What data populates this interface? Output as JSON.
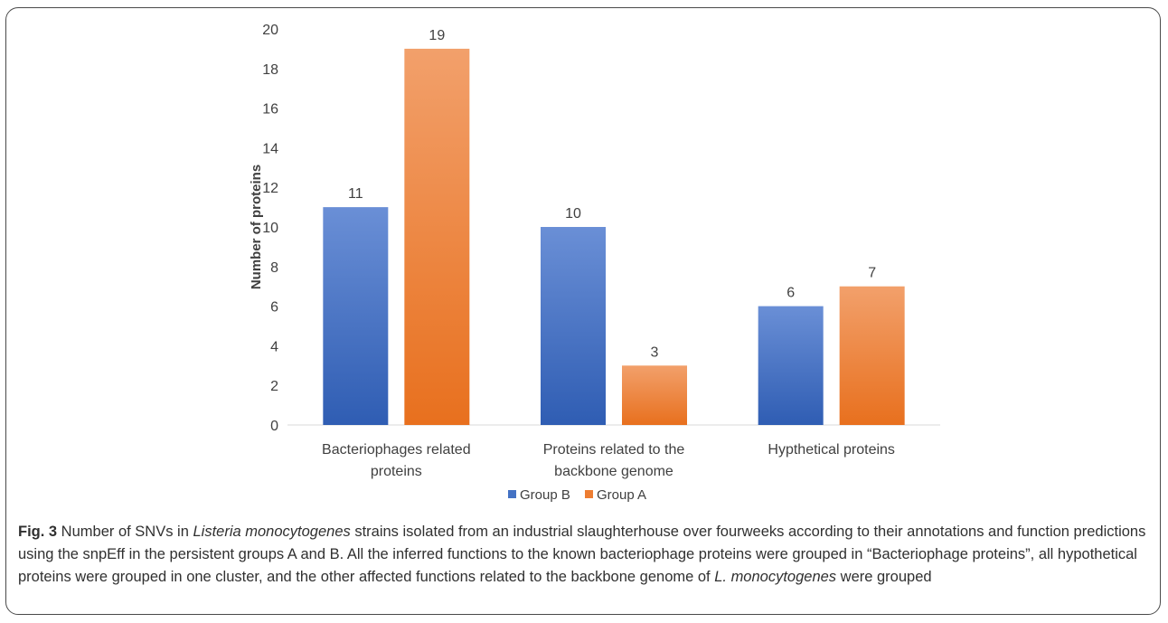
{
  "chart_data": {
    "type": "bar",
    "categories": [
      [
        "Bacteriophages related",
        "proteins"
      ],
      [
        "Proteins related to the",
        "backbone genome"
      ],
      [
        "Hypthetical proteins"
      ]
    ],
    "series": [
      {
        "name": "Group B",
        "values": [
          11,
          10,
          6
        ],
        "color": "#4472C4",
        "gradient": [
          "#6A8FD6",
          "#2F5DB3"
        ]
      },
      {
        "name": "Group A",
        "values": [
          19,
          3,
          7
        ],
        "color": "#ED7D31",
        "gradient": [
          "#F2A06B",
          "#E8701E"
        ]
      }
    ],
    "ylabel": "Number of proteins",
    "xlabel": "",
    "ylim": [
      0,
      20
    ],
    "yticks": [
      0,
      2,
      4,
      6,
      8,
      10,
      12,
      14,
      16,
      18,
      20
    ],
    "grid": false,
    "legend": "bottom-center"
  },
  "caption": {
    "label": "Fig. 3",
    "segments": [
      {
        "text": " Number of SNVs in ",
        "italic": false
      },
      {
        "text": "Listeria monocytogenes",
        "italic": true
      },
      {
        "text": " strains isolated from an industrial slaughterhouse over fourweeks according to their annotations and function predictions using the snpEff in the persistent groups A and B. All the inferred functions to the known bacteriophage proteins were grouped in “Bacteriophage proteins”, all hypothetical proteins were grouped in one cluster, and the other affected functions related to the backbone genome of ",
        "italic": false
      },
      {
        "text": "L. monocytogenes",
        "italic": true
      },
      {
        "text": " were grouped",
        "italic": false
      }
    ]
  }
}
